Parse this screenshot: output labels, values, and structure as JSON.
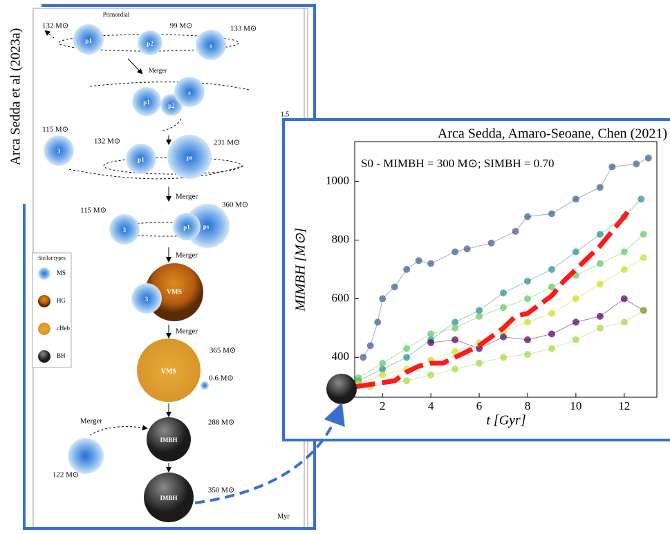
{
  "side_title": "Arca Sedda et al (2023a)",
  "diagram": {
    "labels": [
      "Primordial",
      "132 M⊙",
      "99 M⊙",
      "133 M⊙",
      "p1",
      "p2",
      "s",
      "Merger",
      "p1",
      "p2",
      "s",
      "115 M⊙",
      "132 M⊙",
      "231 M⊙",
      "3",
      "p1",
      "ps",
      "Merger",
      "115 M⊙",
      "360 M⊙",
      "3",
      "p1",
      "ps",
      "Merger",
      "VMS",
      "3",
      "Merger",
      "VMS",
      "365 M⊙",
      "0.6 M⊙",
      "Merger",
      "IMBH",
      "288 M⊙",
      "122 M⊙",
      "IMBH",
      "350 M⊙",
      "Myr",
      "1.5"
    ],
    "legend": {
      "title": "Stellar types",
      "items": [
        "MS",
        "HG",
        "cHeb",
        "BH"
      ]
    }
  },
  "chart_data": {
    "type": "scatter",
    "title": "Arca Sedda, Amaro-Seoane, Chen (2021)",
    "annotation": "S0 - MIMBH = 300 M⊙; SIMBH = 0.70",
    "x_label": "t [Gyr]",
    "y_label": "MIMBH [M⊙]",
    "xlim": [
      0.85,
      13.35
    ],
    "ylim": [
      264,
      1136
    ],
    "xticks": [
      2,
      4,
      6,
      8,
      10,
      12
    ],
    "yticks": [
      400,
      600,
      800,
      1000
    ],
    "series": [
      {
        "color": "#3b5a8a",
        "x": [
          1.2,
          1.5,
          1.8,
          2,
          2.5,
          3,
          3.5,
          4,
          5,
          5.5,
          6.5,
          7.5,
          8,
          9,
          10,
          11,
          11.5,
          12.5,
          13
        ],
        "values": [
          400,
          440,
          520,
          600,
          640,
          700,
          730,
          720,
          760,
          770,
          790,
          830,
          880,
          890,
          940,
          980,
          1050,
          1060,
          1080
        ]
      },
      {
        "color": "#2a8c8c",
        "x": [
          1,
          2,
          3,
          4,
          5,
          6,
          7,
          8,
          9,
          10,
          11,
          12,
          12.7
        ],
        "values": [
          320,
          360,
          400,
          460,
          520,
          560,
          620,
          660,
          700,
          760,
          820,
          880,
          940
        ]
      },
      {
        "color": "#5ec962",
        "x": [
          1,
          2,
          3,
          4,
          5,
          6,
          7,
          8,
          9,
          10,
          11,
          12,
          12.8
        ],
        "values": [
          330,
          380,
          430,
          480,
          500,
          540,
          570,
          600,
          640,
          680,
          720,
          760,
          820
        ]
      },
      {
        "color": "#c8e020",
        "x": [
          1,
          2,
          3,
          4,
          5,
          6,
          7,
          8,
          9,
          10,
          11,
          12,
          12.8
        ],
        "values": [
          310,
          340,
          360,
          390,
          420,
          450,
          490,
          520,
          550,
          600,
          650,
          700,
          740
        ]
      },
      {
        "color": "#440154",
        "x": [
          4,
          5,
          6,
          7,
          8,
          9,
          10,
          11,
          12,
          12.8
        ],
        "values": [
          450,
          460,
          430,
          470,
          460,
          480,
          520,
          540,
          600,
          560
        ]
      },
      {
        "color": "#a0da39",
        "x": [
          1.5,
          3,
          4,
          5,
          6,
          7,
          8,
          9,
          10,
          11,
          12,
          12.8
        ],
        "values": [
          300,
          320,
          340,
          360,
          380,
          400,
          410,
          430,
          460,
          500,
          520,
          560
        ]
      }
    ],
    "median": {
      "color": "#ff1a1a",
      "x": [
        0.9,
        2.5,
        3,
        3.5,
        4,
        4.5,
        5,
        6,
        7,
        7.5,
        8,
        9,
        9.5,
        10,
        11,
        11.5,
        12,
        12.3
      ],
      "values": [
        300,
        320,
        350,
        370,
        380,
        380,
        400,
        440,
        500,
        540,
        550,
        610,
        660,
        700,
        780,
        830,
        880,
        915
      ]
    }
  }
}
